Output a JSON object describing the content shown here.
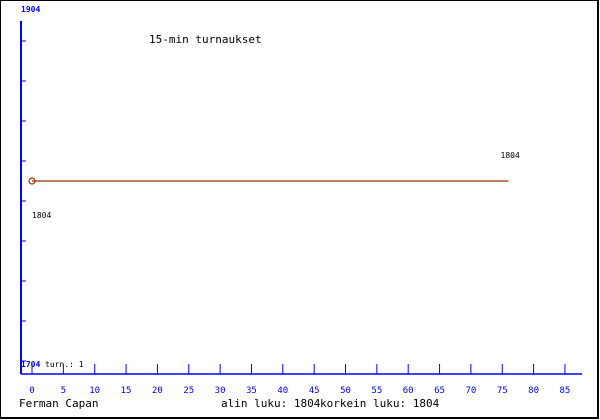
{
  "chart_data": {
    "type": "line",
    "title": "15-min turnaukset",
    "ylim": [
      1704,
      1904
    ],
    "xlim": [
      0,
      85
    ],
    "y_tick_labels": [
      "1904",
      "1704"
    ],
    "x_ticks": [
      0,
      5,
      10,
      15,
      20,
      25,
      30,
      35,
      40,
      45,
      50,
      55,
      60,
      65,
      70,
      75,
      80,
      85
    ],
    "series": [
      {
        "x": [
          0,
          76
        ],
        "y": [
          1804,
          1804
        ]
      }
    ],
    "data_labels": [
      {
        "x": 0,
        "y": 1804,
        "text": "1804"
      },
      {
        "x": 76,
        "y": 1804,
        "text": "1804"
      }
    ],
    "grid": false,
    "colors": {
      "axis": "#0000ff",
      "line": "#993300",
      "text": "#000000"
    }
  },
  "footer": {
    "author": "Ferman Capan",
    "turn_label": "turn.: 1",
    "min_label": "alin luku: 1804",
    "max_label": "korkein luku: 1804"
  }
}
